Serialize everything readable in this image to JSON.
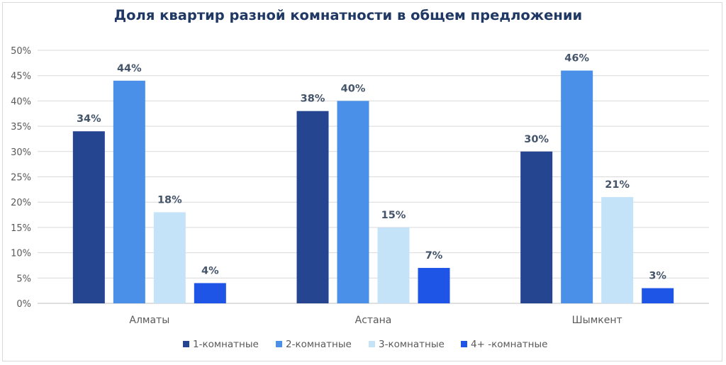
{
  "chart_data": {
    "type": "bar",
    "title": "Доля квартир разной комнатности в общем предложении",
    "categories": [
      "Алматы",
      "Астана",
      "Шымкент"
    ],
    "series": [
      {
        "name": "1-комнатные",
        "color": "#264591",
        "values": [
          34,
          38,
          30
        ],
        "labels": [
          "34%",
          "38%",
          "30%"
        ]
      },
      {
        "name": "2-комнатные",
        "color": "#4a90e8",
        "values": [
          44,
          40,
          46
        ],
        "labels": [
          "44%",
          "40%",
          "46%"
        ]
      },
      {
        "name": "3-комнатные",
        "color": "#c5e3f8",
        "values": [
          18,
          15,
          21
        ],
        "labels": [
          "18%",
          "15%",
          "21%"
        ]
      },
      {
        "name": "4+ -комнатные",
        "color": "#1f55e6",
        "values": [
          4,
          7,
          3
        ],
        "labels": [
          "4%",
          "7%",
          "3%"
        ]
      }
    ],
    "ylim": [
      0,
      50
    ],
    "yticks": [
      0,
      5,
      10,
      15,
      20,
      25,
      30,
      35,
      40,
      45,
      50
    ],
    "ytick_labels": [
      "0%",
      "5%",
      "10%",
      "15%",
      "20%",
      "25%",
      "30%",
      "35%",
      "40%",
      "45%",
      "50%"
    ],
    "grid": true,
    "legend": "bottom"
  }
}
